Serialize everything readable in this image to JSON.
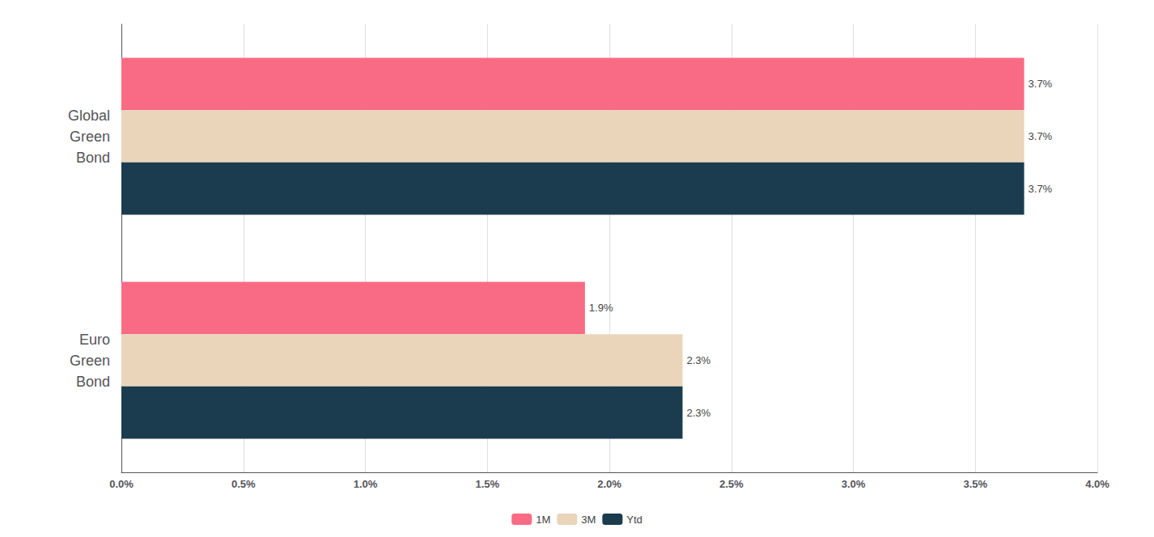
{
  "chart_data": {
    "type": "bar",
    "orientation": "horizontal",
    "categories": [
      "Global\nGreen\nBond",
      "Euro\nGreen\nBond"
    ],
    "series": [
      {
        "name": "1M",
        "color": "#F96B84",
        "values": [
          3.7,
          1.9
        ],
        "value_labels": [
          "3.7%",
          "1.9%"
        ]
      },
      {
        "name": "3M",
        "color": "#EAD5BA",
        "values": [
          3.7,
          2.3
        ],
        "value_labels": [
          "3.7%",
          "2.3%"
        ]
      },
      {
        "name": "Ytd",
        "color": "#1A3C4E",
        "values": [
          3.7,
          2.3
        ],
        "value_labels": [
          "3.7%",
          "2.3%"
        ]
      }
    ],
    "data_labels": true,
    "xlim": [
      0,
      4.0
    ],
    "xticks": [
      {
        "value": 0.0,
        "label": "0.0%"
      },
      {
        "value": 0.5,
        "label": "0.5%"
      },
      {
        "value": 1.0,
        "label": "1.0%"
      },
      {
        "value": 1.5,
        "label": "1.5%"
      },
      {
        "value": 2.0,
        "label": "2.0%"
      },
      {
        "value": 2.5,
        "label": "2.5%"
      },
      {
        "value": 3.0,
        "label": "3.0%"
      },
      {
        "value": 3.5,
        "label": "3.5%"
      },
      {
        "value": 4.0,
        "label": "4.0%"
      }
    ],
    "grid": true,
    "legend": "bottom"
  }
}
